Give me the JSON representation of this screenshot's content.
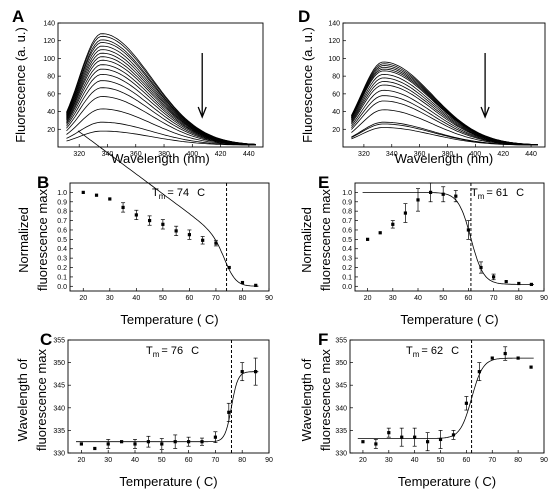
{
  "chart_data": [
    {
      "panel": "A",
      "type": "line",
      "xlabel": "Wavelength (nm)",
      "ylabel": "Fluorescence (a. u.)",
      "xlim": [
        305,
        450
      ],
      "ylim": [
        0,
        140
      ],
      "xticks": [
        320,
        340,
        360,
        380,
        400,
        420,
        440
      ],
      "yticks": [
        20,
        40,
        60,
        80,
        100,
        120,
        140
      ],
      "peak_x": 336,
      "curve_peaks": [
        128,
        125,
        121,
        118,
        114,
        110,
        106,
        102,
        98,
        93,
        88,
        82,
        75,
        67,
        57,
        43,
        28,
        18
      ],
      "arrow": "down"
    },
    {
      "panel": "D",
      "type": "line",
      "xlabel": "Wavelength (nm)",
      "ylabel": "Fluorescence (a. u.)",
      "xlim": [
        305,
        450
      ],
      "ylim": [
        0,
        140
      ],
      "xticks": [
        320,
        340,
        360,
        380,
        400,
        420,
        440
      ],
      "yticks": [
        20,
        40,
        60,
        80,
        100,
        120,
        140
      ],
      "peak_x": 334,
      "curve_peaks": [
        96,
        94,
        92,
        90,
        88,
        86,
        82,
        78,
        74,
        70,
        64,
        58,
        52,
        42,
        28,
        26,
        22
      ],
      "arrow": "down"
    },
    {
      "panel": "B",
      "type": "scatter",
      "xlabel": "Temperature ( C)",
      "ylabel": "Normalized fluorescence max",
      "annotation": "T",
      "annotation_sub": "m",
      "annotation_value": "= 74",
      "annotation_unit": "C",
      "tm": 74,
      "xlim": [
        15,
        90
      ],
      "ylim": [
        -0.05,
        1.1
      ],
      "xticks": [
        20,
        30,
        40,
        50,
        60,
        70,
        80,
        90
      ],
      "yticks": [
        0.0,
        0.1,
        0.2,
        0.3,
        0.4,
        0.5,
        0.6,
        0.7,
        0.8,
        0.9,
        1.0
      ],
      "x": [
        20,
        25,
        30,
        35,
        40,
        45,
        50,
        55,
        60,
        65,
        70,
        75,
        80,
        85
      ],
      "y": [
        1.0,
        0.97,
        0.93,
        0.84,
        0.76,
        0.7,
        0.66,
        0.59,
        0.55,
        0.49,
        0.46,
        0.2,
        0.04,
        0.01
      ],
      "err": [
        0.0,
        0.0,
        0.0,
        0.05,
        0.05,
        0.05,
        0.05,
        0.05,
        0.05,
        0.04,
        0.03,
        0.0,
        0.0,
        0.0
      ],
      "fit": {
        "top": 0.48,
        "bottom": 0.0,
        "slope": 2.2,
        "drift": 0.021
      }
    },
    {
      "panel": "E",
      "type": "scatter",
      "xlabel": "Temperature ( C)",
      "ylabel": "Normalized fluorescence max",
      "annotation": "T",
      "annotation_sub": "m",
      "annotation_value": "= 61",
      "annotation_unit": "C",
      "tm": 61,
      "xlim": [
        15,
        90
      ],
      "ylim": [
        -0.05,
        1.1
      ],
      "xticks": [
        20,
        30,
        40,
        50,
        60,
        70,
        80,
        90
      ],
      "yticks": [
        0.0,
        0.1,
        0.2,
        0.3,
        0.4,
        0.5,
        0.6,
        0.7,
        0.8,
        0.9,
        1.0
      ],
      "x": [
        20,
        25,
        30,
        35,
        40,
        45,
        50,
        55,
        60,
        65,
        70,
        75,
        80,
        85
      ],
      "y": [
        0.5,
        0.57,
        0.66,
        0.78,
        0.92,
        1.0,
        0.98,
        0.96,
        0.6,
        0.2,
        0.1,
        0.05,
        0.03,
        0.02
      ],
      "err": [
        0.0,
        0.0,
        0.04,
        0.1,
        0.12,
        0.1,
        0.08,
        0.06,
        0.1,
        0.06,
        0.03,
        0.0,
        0.0,
        0.0
      ],
      "fit": {
        "top": 1.0,
        "bottom": 0.02,
        "slope": 2.5,
        "drift": 0.0
      }
    },
    {
      "panel": "C",
      "type": "scatter",
      "xlabel": "Temperature ( C)",
      "ylabel": "Wavelength of fluorescence max",
      "annotation": "T",
      "annotation_sub": "m",
      "annotation_value": "= 76",
      "annotation_unit": "C",
      "tm": 76,
      "xlim": [
        15,
        90
      ],
      "ylim": [
        330,
        355
      ],
      "xticks": [
        20,
        30,
        40,
        50,
        60,
        70,
        80,
        90
      ],
      "yticks": [
        330,
        335,
        340,
        345,
        350,
        355
      ],
      "x": [
        20,
        25,
        30,
        35,
        40,
        45,
        50,
        55,
        60,
        65,
        70,
        75,
        80,
        85
      ],
      "y": [
        332,
        331,
        332,
        332.5,
        332,
        332.5,
        332,
        332.5,
        332.5,
        332.5,
        333.5,
        339,
        348,
        348
      ],
      "err": [
        0.0,
        0.0,
        1.0,
        0.0,
        1.0,
        1.2,
        1.2,
        1.5,
        1.0,
        0.8,
        1.2,
        2.0,
        2.0,
        3.0
      ],
      "fit": {
        "top": 332.5,
        "bottom": 348,
        "slope": 1.2,
        "drift": 0.0
      }
    },
    {
      "panel": "F",
      "type": "scatter",
      "xlabel": "Temperature ( C)",
      "ylabel": "Wavelength of fluorescence max",
      "annotation": "T",
      "annotation_sub": "m",
      "annotation_value": "= 62",
      "annotation_unit": "C",
      "tm": 62,
      "xlim": [
        15,
        90
      ],
      "ylim": [
        330,
        355
      ],
      "xticks": [
        20,
        30,
        40,
        50,
        60,
        70,
        80,
        90
      ],
      "yticks": [
        330,
        335,
        340,
        345,
        350,
        355
      ],
      "x": [
        20,
        25,
        30,
        35,
        40,
        45,
        50,
        55,
        60,
        65,
        70,
        75,
        80,
        85
      ],
      "y": [
        332.5,
        332,
        334.5,
        333.5,
        333.5,
        332.5,
        333,
        334,
        341,
        348,
        351,
        352,
        351,
        349
      ],
      "err": [
        0.0,
        1.0,
        1.0,
        2.0,
        2.0,
        2.0,
        2.0,
        1.0,
        1.5,
        2.0,
        0.0,
        1.5,
        0.0,
        0.0
      ],
      "fit": {
        "top": 333.2,
        "bottom": 351,
        "slope": 2.2,
        "drift": 0.0
      }
    }
  ]
}
